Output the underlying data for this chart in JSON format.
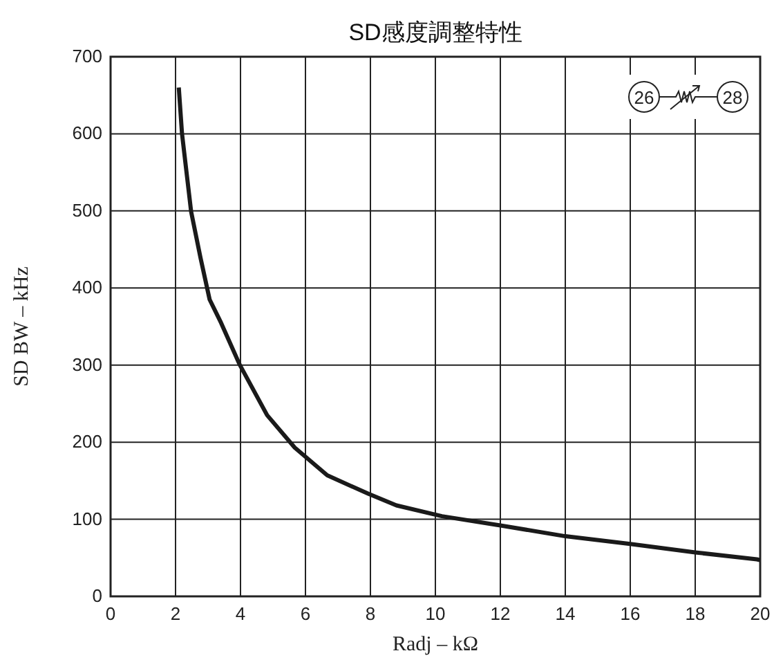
{
  "chart_data": {
    "type": "line",
    "title": "SD感度調整特性",
    "xlabel": "Radj – kΩ",
    "ylabel": "SD BW – kHz",
    "xlim": [
      0,
      20
    ],
    "ylim": [
      0,
      700
    ],
    "xticks": [
      0,
      2,
      4,
      6,
      8,
      10,
      12,
      14,
      16,
      18,
      20
    ],
    "yticks": [
      0,
      100,
      200,
      300,
      400,
      500,
      600,
      700
    ],
    "grid": true,
    "marker": "none",
    "line_style": "solid",
    "annotations": [
      "26",
      "28"
    ],
    "series": [
      {
        "color": "#1a1a1a",
        "x": [
          2.1,
          2.2,
          2.48,
          2.77,
          3.05,
          3.4,
          3.97,
          4.82,
          5.67,
          6.67,
          7.94,
          8.8,
          10.2,
          12,
          14,
          16,
          18,
          19.9,
          20
        ],
        "values": [
          660,
          600,
          499,
          439,
          385,
          355,
          301,
          235,
          193,
          157,
          133,
          118,
          104,
          92,
          78,
          68,
          57,
          48,
          47
        ]
      }
    ]
  }
}
